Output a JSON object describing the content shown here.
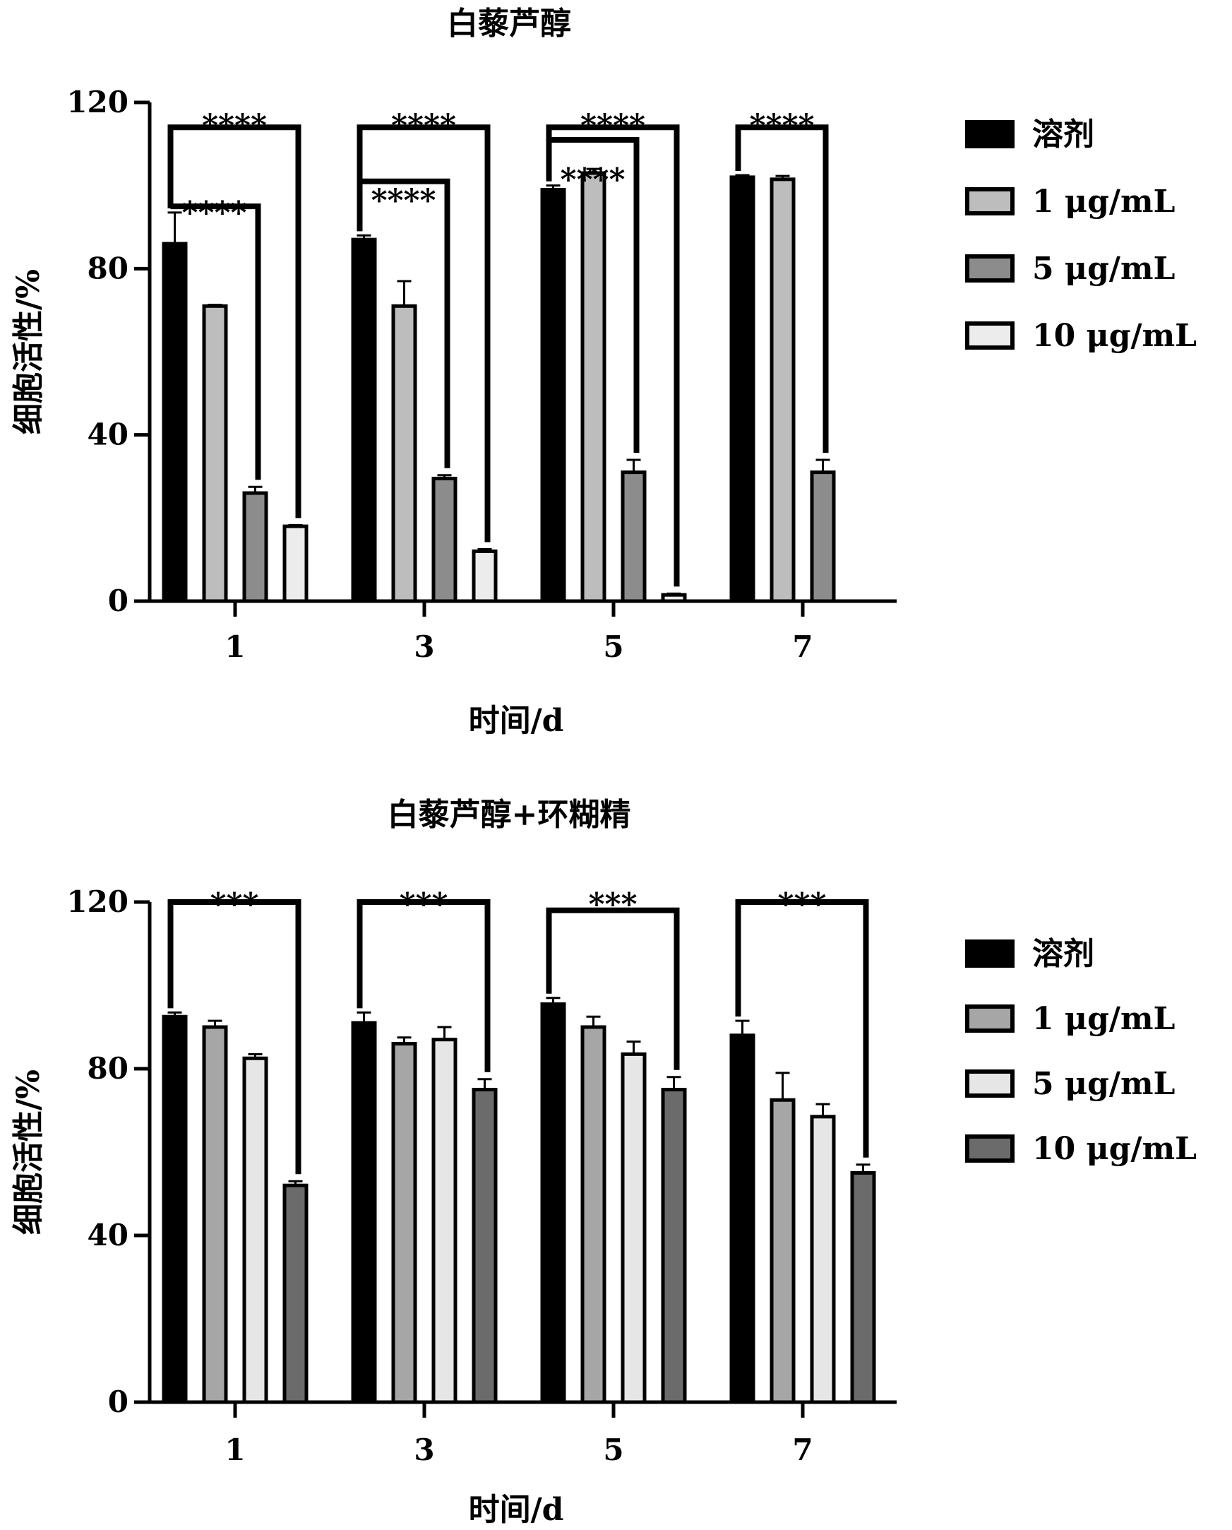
{
  "chart_data": [
    {
      "type": "bar",
      "title": "白藜芦醇",
      "xlabel": "时间/d",
      "ylabel": "细胞活性/%",
      "ylim": [
        0,
        120
      ],
      "yticks": [
        0,
        40,
        80,
        120
      ],
      "categories": [
        "1",
        "3",
        "5",
        "7"
      ],
      "series": [
        {
          "name": "溶剂",
          "color": "#000000",
          "values": [
            86,
            87,
            99,
            102
          ],
          "errors": [
            7.5,
            1,
            1,
            0.5
          ]
        },
        {
          "name": "1 μg/mL",
          "color": "#bdbdbd",
          "values": [
            71,
            71,
            103,
            101.5
          ],
          "errors": [
            0.3,
            6,
            1,
            0.8
          ]
        },
        {
          "name": "5 μg/mL",
          "color": "#8c8c8c",
          "values": [
            26,
            29.5,
            31,
            31
          ],
          "errors": [
            1.5,
            0.8,
            3,
            3
          ]
        },
        {
          "name": "10 μg/mL",
          "color": "#ececec",
          "values": [
            18,
            12,
            1.5,
            null
          ],
          "errors": [
            0.3,
            0.5,
            0.3,
            null
          ]
        }
      ],
      "significance": [
        {
          "category": "1",
          "from": 0,
          "to": 3,
          "label": "****"
        },
        {
          "category": "1",
          "from": 0,
          "to": 2,
          "label": "****"
        },
        {
          "category": "3",
          "from": 0,
          "to": 3,
          "label": "****"
        },
        {
          "category": "3",
          "from": 0,
          "to": 2,
          "label": "****"
        },
        {
          "category": "5",
          "from": 0,
          "to": 3,
          "label": "****"
        },
        {
          "category": "5",
          "from": 0,
          "to": 2,
          "label": "****"
        },
        {
          "category": "7",
          "from": 0,
          "to": 2,
          "label": "****"
        }
      ],
      "legend_position": "right"
    },
    {
      "type": "bar",
      "title": "白藜芦醇+环糊精",
      "xlabel": "时间/d",
      "ylabel": "细胞活性/%",
      "ylim": [
        0,
        120
      ],
      "yticks": [
        0,
        40,
        80,
        120
      ],
      "categories": [
        "1",
        "3",
        "5",
        "7"
      ],
      "series": [
        {
          "name": "溶剂",
          "color": "#000000",
          "values": [
            92.5,
            91,
            95.5,
            88
          ],
          "errors": [
            1,
            2.5,
            1.5,
            3.5
          ]
        },
        {
          "name": "1 μg/mL",
          "color": "#a6a6a6",
          "values": [
            90,
            86,
            90,
            72.5
          ],
          "errors": [
            1.5,
            1.5,
            2.5,
            6.5
          ]
        },
        {
          "name": "5 μg/mL",
          "color": "#e6e6e6",
          "values": [
            82.5,
            87,
            83.5,
            68.5
          ],
          "errors": [
            1,
            3,
            3,
            3
          ]
        },
        {
          "name": "10 μg/mL",
          "color": "#6b6b6b",
          "values": [
            52,
            75,
            75,
            55
          ],
          "errors": [
            1,
            2.5,
            3,
            2
          ]
        }
      ],
      "significance": [
        {
          "category": "1",
          "from": 0,
          "to": 3,
          "label": "***"
        },
        {
          "category": "3",
          "from": 0,
          "to": 3,
          "label": "***"
        },
        {
          "category": "5",
          "from": 0,
          "to": 3,
          "label": "***"
        },
        {
          "category": "7",
          "from": 0,
          "to": 3,
          "label": "***"
        }
      ],
      "legend_position": "right"
    }
  ]
}
